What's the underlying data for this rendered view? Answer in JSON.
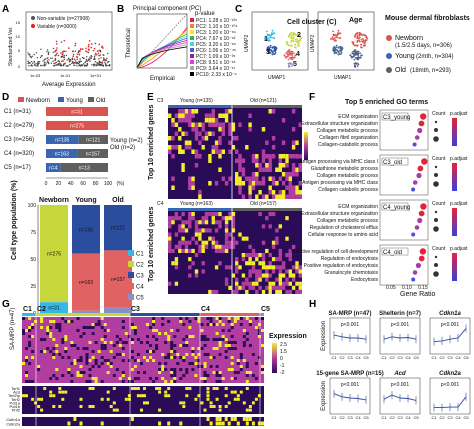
{
  "colors": {
    "newborn": "#d9534f",
    "young": "#3a66b1",
    "old": "#5f5f5f",
    "c1": "#35b7e8",
    "c2": "#c7d63a",
    "c3": "#2b4d9e",
    "c4": "#e06262",
    "c5": "#8b8fc8",
    "heat_low": "#2a0b57",
    "heat_mid": "#b23da0",
    "heat_high": "#f4ee2a"
  },
  "panels": [
    "A",
    "B",
    "C",
    "D",
    "E",
    "F",
    "G",
    "H"
  ],
  "panelA": {
    "ylabel": "Standardized Var.",
    "xlabel": "Average Expression",
    "legend": [
      "Non-variable (n=27908)",
      "Variable (n=3000)"
    ],
    "yticks": [
      "15",
      "10",
      "5",
      "0"
    ],
    "xticks": [
      "1e-03",
      "1e-01",
      "1e+01"
    ]
  },
  "panelB": {
    "title": "Principal component (PC)",
    "xlabel": "Empirical",
    "ylabel": "Theoretical",
    "pvalue_header": "p-value",
    "rows": [
      {
        "pc": "PC1",
        "p": "1.28 x 10⁻¹²⁵"
      },
      {
        "pc": "PC2",
        "p": "1.10 x 10⁻¹⁰⁹"
      },
      {
        "pc": "PC3",
        "p": "1.20 x 10⁻⁸⁹"
      },
      {
        "pc": "PC4",
        "p": "7.67 x 10⁻⁶²"
      },
      {
        "pc": "PC5",
        "p": "3.20 x 10⁻⁸⁵"
      },
      {
        "pc": "PC6",
        "p": "1.06 x 10⁻⁴⁶"
      },
      {
        "pc": "PC7",
        "p": "1.09 x 10⁻³⁵"
      },
      {
        "pc": "PC8",
        "p": "9.51 x 10⁻¹⁸"
      },
      {
        "pc": "PC9",
        "p": "3.64 x 10⁻¹¹"
      },
      {
        "pc": "PC10",
        "p": "2.33 x 10⁻⁹"
      }
    ]
  },
  "panelC": {
    "left_title": "Cell cluster (C)",
    "right_title": "Age",
    "xlabel": "UMAP1",
    "ylabel": "UMAP2",
    "cluster_labels": [
      "1",
      "2",
      "3",
      "4",
      "5"
    ],
    "legend_title": "Mouse dermal fibroblasts",
    "legend": [
      {
        "label": "Newborn",
        "detail": "(1.5/2.5 days, n=306)"
      },
      {
        "label": "Young",
        "detail": "(2mth, n=304)"
      },
      {
        "label": "Old",
        "detail": "(18mth, n=293)"
      }
    ]
  },
  "panelD": {
    "legend": [
      "Newborn",
      "Young",
      "Old"
    ],
    "rows": [
      {
        "label": "C1 (n=31)",
        "segments": [
          {
            "group": "newborn",
            "value": 31,
            "text": "n=31"
          }
        ]
      },
      {
        "label": "C2 (n=279)",
        "segments": [
          {
            "group": "newborn",
            "value": 275,
            "text": "n=275"
          }
        ]
      },
      {
        "label": "C3 (n=256)",
        "segments": [
          {
            "group": "young",
            "value": 135,
            "text": "n=135"
          },
          {
            "group": "old",
            "value": 121,
            "text": "n=121"
          }
        ]
      },
      {
        "label": "C4 (n=320)",
        "segments": [
          {
            "group": "young",
            "value": 163,
            "text": "n=163"
          },
          {
            "group": "old",
            "value": 157,
            "text": "n=157"
          }
        ]
      },
      {
        "label": "C5 (n=17)",
        "segments": [
          {
            "group": "young",
            "value": 4,
            "text": "n=4"
          },
          {
            "group": "old",
            "value": 13,
            "text": "n=13"
          }
        ]
      }
    ],
    "side_note": [
      "Young (n=2)",
      "Old (n=2)"
    ],
    "xticks": [
      "0",
      "20",
      "40",
      "60",
      "80",
      "100",
      "(%)"
    ],
    "stack_ylabel": "Cell type population (%)",
    "stack_yticks": [
      "100",
      "75",
      "50",
      "25",
      "0"
    ],
    "stack_groups": [
      "Newborn",
      "Young",
      "Old"
    ],
    "stack_legend": [
      "C1",
      "C2",
      "C3",
      "C4",
      "C5"
    ],
    "stack_labels": [
      "n=275",
      "n=31",
      "n=135",
      "n=163",
      "n=121",
      "n=157"
    ]
  },
  "panelE": {
    "header_young": "Young (n=135)",
    "header_old": "Old (n=121)",
    "header_young2": "Young (n=163)",
    "header_old2": "Old (n=157)",
    "cluster_top": "C3",
    "cluster_bottom": "C4",
    "ylabel": "Top 10 enriched genes",
    "legend_ticks": [
      "2",
      "1",
      "0",
      "-1",
      "-2"
    ]
  },
  "panelF": {
    "title": "Top 5 enriched GO terms",
    "xlabel": "Gene Ratio",
    "count_label": "Count",
    "padj_label": "p.adjust",
    "groups": [
      {
        "name": "C3_young",
        "terms": [
          "ECM organization",
          "Extracellular structure organization",
          "Collagen metabolic process",
          "Collagen fibril organization",
          "Collagen-catabolic process"
        ]
      },
      {
        "name": "C3_old",
        "terms": [
          "Antigen processing via MHC class I",
          "Glutathione metabolic process",
          "Collagen metabolic process",
          "Antigen processing via MHC class",
          "Collagen catabolic process"
        ]
      },
      {
        "name": "C4_young",
        "terms": [
          "ECM organization",
          "Extracellular structure organization",
          "Collagen metabolic process",
          "Regulation of cholesterol efflux",
          "Cellular response to amino acid"
        ]
      },
      {
        "name": "C4_old",
        "terms": [
          "Negative regulation of cell development",
          "Regulation of endocytosis",
          "Positive regulation of endocytosis",
          "Granulocyte chemotaxis",
          "Endocytosis"
        ]
      }
    ],
    "xticks": [
      "0.05",
      "0.10",
      "0.15"
    ]
  },
  "panelG": {
    "clusters": [
      "C1",
      "C2",
      "C3",
      "C4",
      "C5"
    ],
    "ylabel": "SA-MRP (n=47)",
    "genes": [
      "Terf1",
      "Acd",
      "Terf2ip",
      "Terf2",
      "Pot1a",
      "Pot1b",
      "Tinf2",
      "Cdkn1a",
      "Cdkn2a"
    ],
    "legend_title": "Expression",
    "legend_ticks": [
      "2.5",
      "1.5",
      "0",
      "-1",
      "-2"
    ]
  },
  "panelH": {
    "ylabel": "Expression",
    "xticks": [
      "C1",
      "C2",
      "C3",
      "C4",
      "C5"
    ],
    "plots": [
      {
        "title": "SA-MRP (n=47)",
        "pvalue": "p<0.001",
        "values": [
          0.62,
          0.55,
          0.5,
          0.5,
          0.45
        ]
      },
      {
        "title": "Shelterin (n=7)",
        "pvalue": "p<0.001",
        "values": [
          0.45,
          0.55,
          0.5,
          0.52,
          0.45
        ]
      },
      {
        "title": "Cdkn1a",
        "pvalue": "p<0.001",
        "values": [
          0.35,
          0.38,
          0.45,
          0.5,
          0.9
        ]
      },
      {
        "title": "15-gene SA-MRP (n=15)",
        "pvalue": "p<0.001",
        "values": [
          0.68,
          0.55,
          0.5,
          0.48,
          0.42
        ]
      },
      {
        "title": "Acd",
        "pvalue": "p<0.001",
        "values": [
          0.45,
          0.62,
          0.5,
          0.48,
          0.4
        ]
      },
      {
        "title": "Cdkn2a",
        "pvalue": "p<0.001",
        "values": [
          0.1,
          0.1,
          0.12,
          0.12,
          0.55
        ]
      }
    ]
  }
}
